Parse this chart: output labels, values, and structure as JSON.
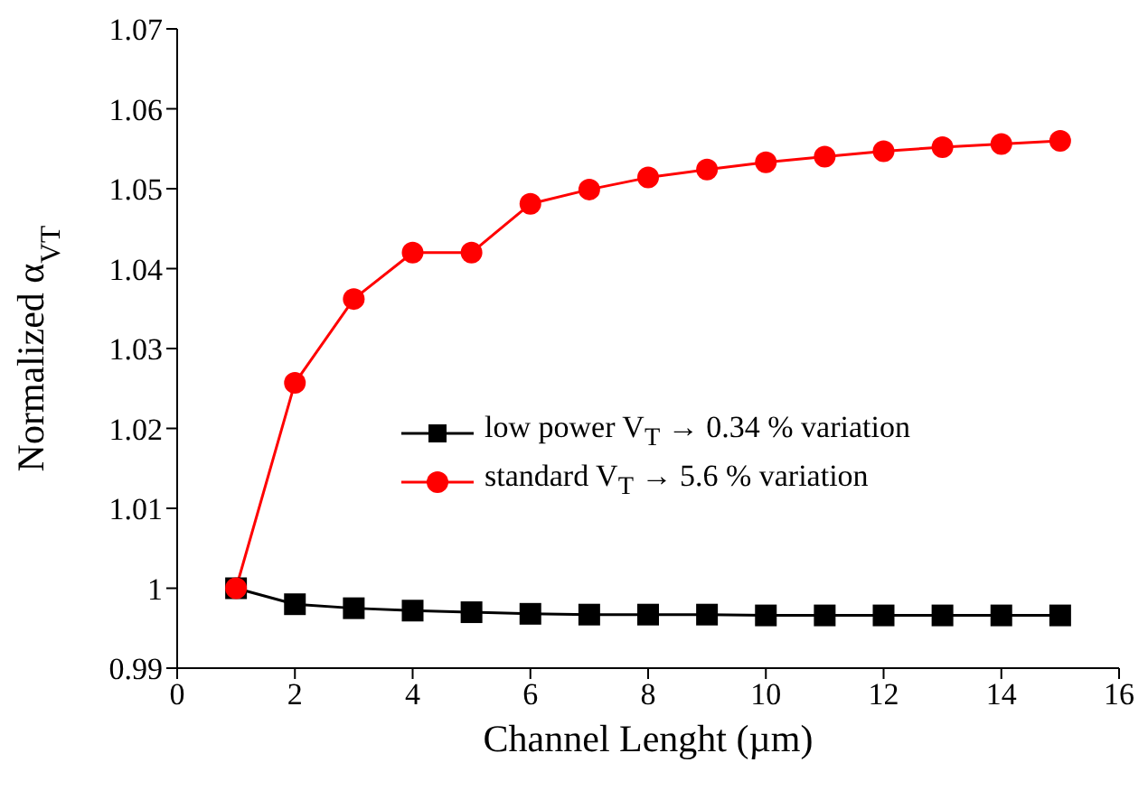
{
  "chart_data": {
    "type": "line",
    "xlabel": "Channel Lenght (µm)",
    "ylabel": "Normalized α$_{VT}$",
    "x": [
      1,
      2,
      3,
      4,
      5,
      6,
      7,
      8,
      9,
      10,
      11,
      12,
      13,
      14,
      15
    ],
    "series": [
      {
        "name": "low power V$_{T}$ → 0.34 % variation",
        "color": "#000000",
        "marker": "square",
        "values": [
          1,
          0.998,
          0.9975,
          0.9972,
          0.997,
          0.9968,
          0.9967,
          0.9967,
          0.9967,
          0.9966,
          0.9966,
          0.9966,
          0.9966,
          0.9966,
          0.9966
        ]
      },
      {
        "name": "standard V$_{T}$ → 5.6 % variation",
        "color": "#ff0000",
        "marker": "circle",
        "values": [
          1,
          1.0257,
          1.0362,
          1.042,
          1.042,
          1.0481,
          1.0499,
          1.0514,
          1.0524,
          1.0533,
          1.054,
          1.0547,
          1.0552,
          1.0556,
          1.056
        ]
      }
    ],
    "xlim": [
      0,
      16
    ],
    "xticks": [
      0,
      2,
      4,
      6,
      8,
      10,
      12,
      14,
      16
    ],
    "ylim": [
      0.99,
      1.07
    ],
    "yticks": [
      0.99,
      1,
      1.01,
      1.02,
      1.03,
      1.04,
      1.05,
      1.06,
      1.07
    ],
    "grid": false,
    "legend": "right",
    "line_style": "solid"
  }
}
